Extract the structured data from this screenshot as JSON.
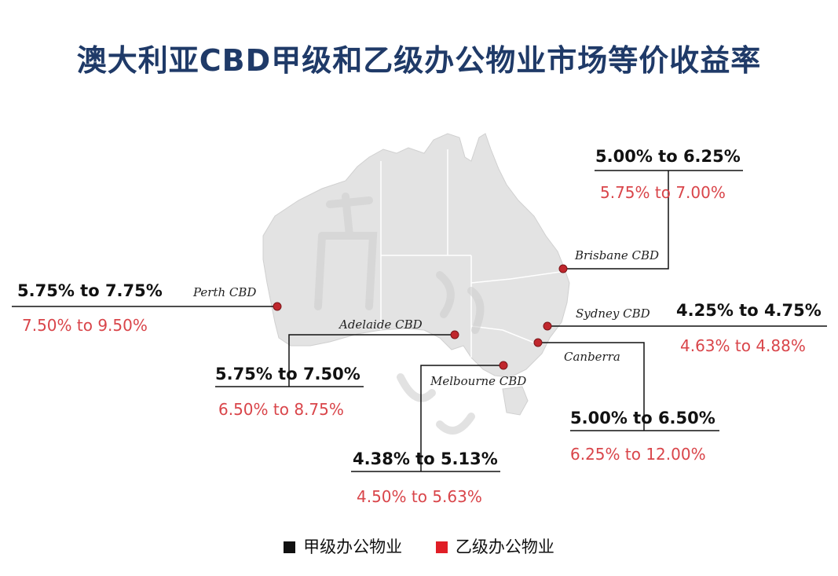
{
  "title": "澳大利亚CBD甲级和乙级办公物业市场等价收益率",
  "colors": {
    "title": "#1f3a68",
    "grade_a": "#111111",
    "grade_b": "#d9454a",
    "marker": "#c0272d"
  },
  "legend": [
    {
      "label": "甲级办公物业",
      "color": "#111111"
    },
    {
      "label": "乙级办公物业",
      "color": "#e01e26"
    }
  ],
  "cities": [
    {
      "key": "perth",
      "label": "Perth CBD",
      "grade_a": "5.75% to 7.75%",
      "grade_b": "7.50% to 9.50%"
    },
    {
      "key": "adelaide",
      "label": "Adelaide CBD",
      "grade_a": "5.75% to 7.50%",
      "grade_b": "6.50% to 8.75%"
    },
    {
      "key": "melbourne",
      "label": "Melbourne CBD",
      "grade_a": "4.38% to 5.13%",
      "grade_b": "4.50% to 5.63%"
    },
    {
      "key": "brisbane",
      "label": "Brisbane CBD",
      "grade_a": "5.00% to 6.25%",
      "grade_b": "5.75% to 7.00%"
    },
    {
      "key": "sydney",
      "label": "Sydney CBD",
      "grade_a": "4.25% to 4.75%",
      "grade_b": "4.63% to 4.88%"
    },
    {
      "key": "canberra",
      "label": "Canberra",
      "grade_a": "5.00% to 6.50%",
      "grade_b": "6.25% to 12.00%"
    }
  ]
}
